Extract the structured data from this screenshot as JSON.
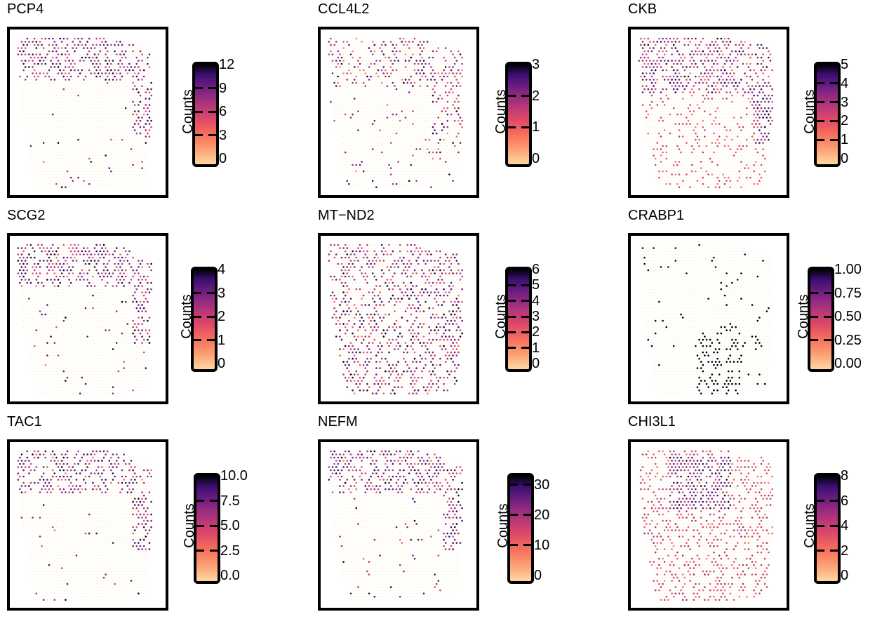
{
  "figure": {
    "legend_title": "Counts"
  },
  "chart_data": [
    {
      "type": "scatter",
      "title": "PCP4",
      "colorbar_title": "Counts",
      "colorbar_ticks": [
        "0",
        "3",
        "6",
        "9",
        "12"
      ],
      "colorbar_range": [
        0,
        12
      ],
      "pattern": "cortex_edge"
    },
    {
      "type": "scatter",
      "title": "CCL4L2",
      "colorbar_title": "Counts",
      "colorbar_ticks": [
        "0",
        "1",
        "2",
        "3"
      ],
      "colorbar_range": [
        0,
        3
      ],
      "pattern": "scattered_edge"
    },
    {
      "type": "scatter",
      "title": "CKB",
      "colorbar_title": "Counts",
      "colorbar_ticks": [
        "0",
        "1",
        "2",
        "3",
        "4",
        "5"
      ],
      "colorbar_range": [
        0,
        5
      ],
      "pattern": "broad"
    },
    {
      "type": "scatter",
      "title": "SCG2",
      "colorbar_title": "Counts",
      "colorbar_ticks": [
        "0",
        "1",
        "2",
        "3",
        "4"
      ],
      "colorbar_range": [
        0,
        4
      ],
      "pattern": "cortex_edge"
    },
    {
      "type": "scatter",
      "title": "MT−ND2",
      "colorbar_title": "Counts",
      "colorbar_ticks": [
        "0",
        "1",
        "2",
        "3",
        "4",
        "5",
        "6"
      ],
      "colorbar_range": [
        0,
        6
      ],
      "pattern": "uniform"
    },
    {
      "type": "scatter",
      "title": "CRABP1",
      "colorbar_title": "Counts",
      "colorbar_ticks": [
        "0.00",
        "0.25",
        "0.50",
        "0.75",
        "1.00"
      ],
      "colorbar_range": [
        0,
        1
      ],
      "pattern": "lower_right"
    },
    {
      "type": "scatter",
      "title": "TAC1",
      "colorbar_title": "Counts",
      "colorbar_ticks": [
        "0.0",
        "2.5",
        "5.0",
        "7.5",
        "10.0"
      ],
      "colorbar_range": [
        0,
        10
      ],
      "pattern": "cortex_edge"
    },
    {
      "type": "scatter",
      "title": "NEFM",
      "colorbar_title": "Counts",
      "colorbar_ticks": [
        "0",
        "10",
        "20",
        "30"
      ],
      "colorbar_range": [
        0,
        33
      ],
      "pattern": "cortex_edge"
    },
    {
      "type": "scatter",
      "title": "CHI3L1",
      "colorbar_title": "Counts",
      "colorbar_ticks": [
        "0",
        "2",
        "4",
        "6",
        "8"
      ],
      "colorbar_range": [
        0,
        8
      ],
      "pattern": "upper_center"
    }
  ]
}
